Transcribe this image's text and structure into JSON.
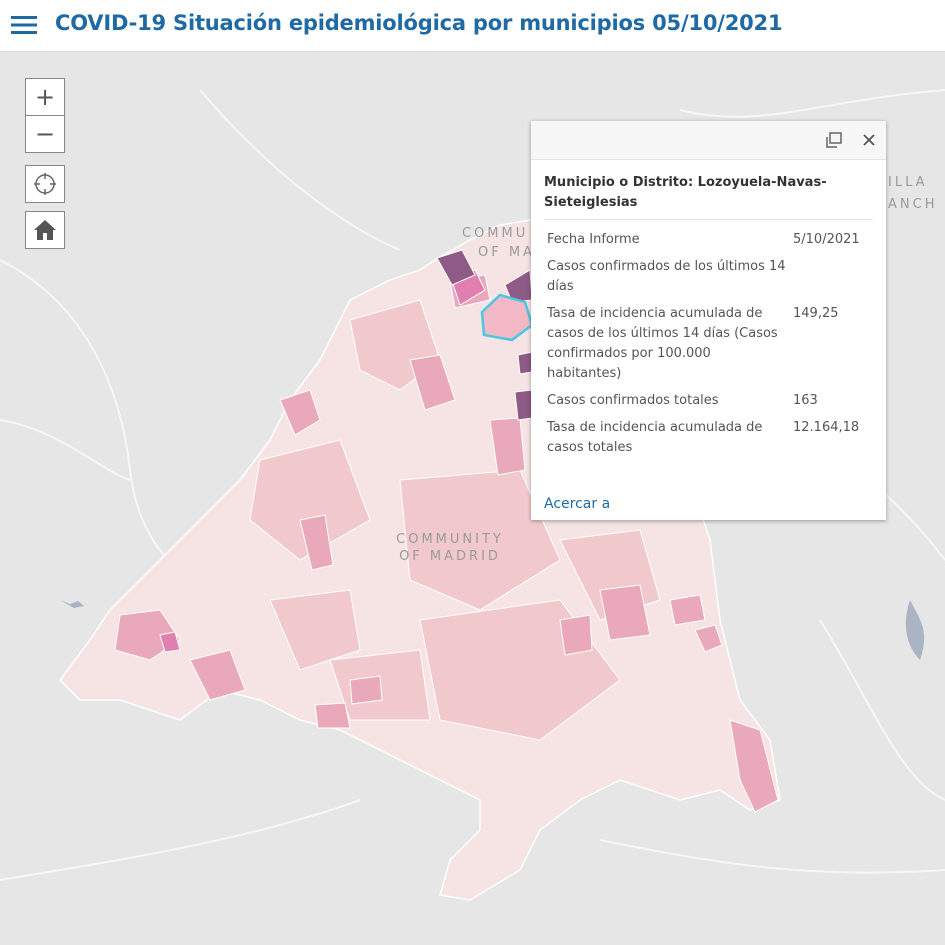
{
  "header": {
    "title": "COVID-19 Situación epidemiológica por municipios 05/10/2021"
  },
  "map": {
    "labels": {
      "center_line1": "COMMUNITY",
      "center_line2": "OF MADRID",
      "north_line1": "COMMU",
      "north_line2": "OF MA",
      "east_line1": "ILLA",
      "east_line2": "ANCH"
    },
    "controls": {
      "zoom_in": "+",
      "zoom_out": "−"
    }
  },
  "popup": {
    "title": "Municipio o Distrito: Lozoyuela-Navas-Sieteiglesias",
    "rows": [
      {
        "label": "Fecha Informe",
        "value": "5/10/2021"
      },
      {
        "label": "Casos confirmados de los últimos 14 días"
      },
      {
        "label": "Tasa de incidencia acumulada de casos de los últimos 14 días (Casos confirmados por 100.000 habitantes)",
        "value": "149,25"
      },
      {
        "label": "Casos confirmados totales",
        "value": "163"
      },
      {
        "label": "Tasa de incidencia acumulada de casos totales",
        "value": "12.164,18"
      }
    ],
    "action": "Acercar a"
  }
}
